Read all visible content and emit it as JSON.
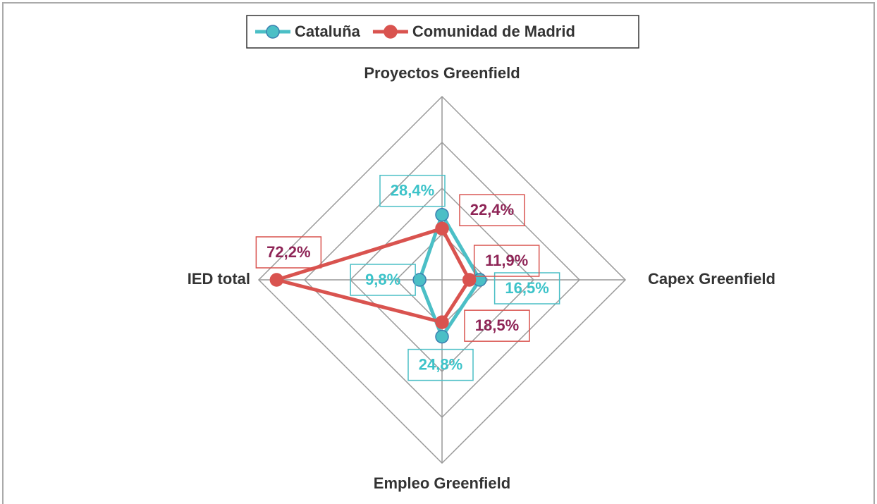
{
  "chart_data": {
    "type": "radar",
    "categories": [
      "Proyectos Greenfield",
      "Capex Greenfield",
      "Empleo Greenfield",
      "IED total"
    ],
    "series": [
      {
        "name": "Cataluña",
        "color": "#4bbfc6",
        "label_color": "#3cc3c9",
        "values": [
          28.4,
          16.5,
          24.8,
          9.8
        ],
        "value_labels": [
          "28,4%",
          "16,5%",
          "24,8%",
          "9,8%"
        ]
      },
      {
        "name": "Comunidad de Madrid",
        "color": "#d9534f",
        "label_color": "#8e2456",
        "values": [
          22.4,
          11.9,
          18.5,
          72.2
        ],
        "value_labels": [
          "22,4%",
          "11,9%",
          "18,5%",
          "72,2%"
        ]
      }
    ],
    "ylim": [
      0,
      80
    ],
    "yticks": [
      0,
      20,
      40,
      60,
      80
    ],
    "grid": true,
    "legend": "top"
  }
}
